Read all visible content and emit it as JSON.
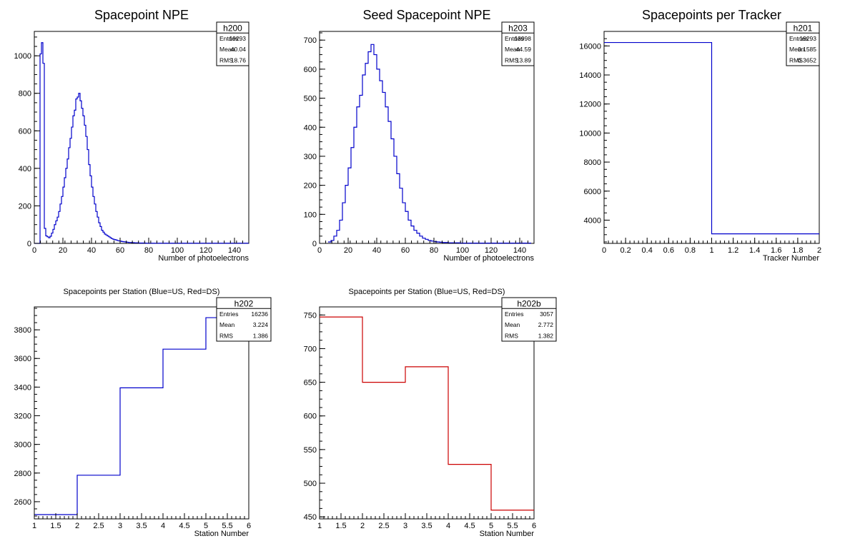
{
  "chart_data": [
    {
      "id": "h200",
      "type": "histogram",
      "title": "Spacepoint NPE",
      "xlabel": "Number of photoelectrons",
      "ylabel": "",
      "xlim": [
        0,
        150
      ],
      "ylim": [
        0,
        1130
      ],
      "xticks": [
        0,
        20,
        40,
        60,
        80,
        100,
        120,
        140
      ],
      "yticks": [
        0,
        200,
        400,
        600,
        800,
        1000
      ],
      "color": "#0000cc",
      "bin_width": 1,
      "bin_start": 0,
      "values": [
        0,
        0,
        0,
        0,
        1010,
        1070,
        960,
        80,
        40,
        35,
        30,
        38,
        55,
        75,
        100,
        120,
        140,
        170,
        210,
        250,
        300,
        350,
        400,
        450,
        510,
        560,
        620,
        680,
        710,
        770,
        780,
        800,
        760,
        720,
        680,
        630,
        570,
        500,
        420,
        360,
        300,
        250,
        210,
        170,
        140,
        110,
        90,
        70,
        60,
        50,
        45,
        40,
        35,
        30,
        25,
        22,
        20,
        18,
        15,
        13,
        12,
        10,
        9,
        8,
        7,
        6,
        5,
        5,
        4,
        4,
        3,
        3,
        3,
        2,
        2,
        2,
        2,
        2,
        1,
        1,
        1,
        1,
        1,
        1,
        1,
        1,
        1,
        1,
        1,
        1,
        1,
        1,
        1,
        1,
        1,
        1,
        1,
        1,
        1,
        1,
        1,
        1,
        1,
        1,
        1,
        1,
        1,
        1,
        1,
        1,
        1,
        1,
        1,
        1,
        1,
        1,
        1,
        1,
        1,
        1,
        1,
        1,
        1,
        1,
        1,
        1,
        1,
        1,
        1,
        1,
        1,
        1,
        1,
        1,
        1,
        1,
        1,
        1,
        1,
        1,
        1,
        1,
        1,
        1,
        1,
        1,
        1,
        1,
        1,
        1
      ],
      "stats": {
        "name": "h200",
        "entries": "19293",
        "mean": "40.04",
        "rms": "18.76"
      }
    },
    {
      "id": "h203",
      "type": "histogram",
      "title": "Seed Spacepoint NPE",
      "xlabel": "Number of photoelectrons",
      "ylabel": "",
      "xlim": [
        0,
        150
      ],
      "ylim": [
        0,
        730
      ],
      "xticks": [
        0,
        20,
        40,
        60,
        80,
        100,
        120,
        140
      ],
      "yticks": [
        0,
        100,
        200,
        300,
        400,
        500,
        600,
        700
      ],
      "color": "#0000cc",
      "bin_width": 2,
      "bin_start": 6,
      "values": [
        5,
        10,
        25,
        45,
        80,
        140,
        200,
        260,
        330,
        400,
        470,
        510,
        580,
        620,
        660,
        685,
        650,
        600,
        560,
        520,
        470,
        420,
        360,
        300,
        240,
        190,
        140,
        110,
        80,
        60,
        45,
        35,
        25,
        18,
        14,
        10,
        8,
        6,
        5,
        4,
        3,
        3,
        2,
        2,
        2,
        2,
        1,
        1,
        1,
        1,
        1,
        1,
        1,
        1,
        1,
        1,
        1,
        1,
        1,
        1,
        1,
        1,
        1,
        1,
        1,
        1,
        1,
        1,
        1,
        1,
        1
      ],
      "stats": {
        "name": "h203",
        "entries": "13998",
        "mean": "44.59",
        "rms": "13.89"
      }
    },
    {
      "id": "h201",
      "type": "histogram",
      "title": "Spacepoints per Tracker",
      "xlabel": "Tracker Number",
      "ylabel": "",
      "xlim": [
        0,
        2
      ],
      "ylim": [
        2400,
        17000
      ],
      "xticks": [
        0,
        0.2,
        0.4,
        0.6,
        0.8,
        1,
        1.2,
        1.4,
        1.6,
        1.8,
        2
      ],
      "yticks": [
        4000,
        6000,
        8000,
        10000,
        12000,
        14000,
        16000
      ],
      "color": "#0000cc",
      "bin_width": 1,
      "bin_start": 0,
      "values": [
        16236,
        3057
      ],
      "stats": {
        "name": "h201",
        "entries": "19293",
        "mean": "0.1585",
        "rms": "0.3652"
      }
    },
    {
      "id": "h202",
      "type": "histogram",
      "title": "Spacepoints per Station (Blue=US, Red=DS)",
      "xlabel": "Station Number",
      "ylabel": "",
      "xlim": [
        1,
        6
      ],
      "ylim": [
        2480,
        3960
      ],
      "xticks": [
        1,
        1.5,
        2,
        2.5,
        3,
        3.5,
        4,
        4.5,
        5,
        5.5,
        6
      ],
      "yticks": [
        2600,
        2800,
        3000,
        3200,
        3400,
        3600,
        3800
      ],
      "color": "#0000cc",
      "bin_width": 1,
      "bin_start": 1,
      "values": [
        2510,
        2785,
        3395,
        3665,
        3885
      ],
      "stats": {
        "name": "h202",
        "entries": "16236",
        "mean": "3.224",
        "rms": "1.386"
      }
    },
    {
      "id": "h202b",
      "type": "histogram",
      "title": "Spacepoints per Station (Blue=US, Red=DS)",
      "xlabel": "Station Number",
      "ylabel": "",
      "xlim": [
        1,
        6
      ],
      "ylim": [
        447,
        762
      ],
      "xticks": [
        1,
        1.5,
        2,
        2.5,
        3,
        3.5,
        4,
        4.5,
        5,
        5.5,
        6
      ],
      "yticks": [
        450,
        500,
        550,
        600,
        650,
        700,
        750
      ],
      "color": "#cc0000",
      "bin_width": 1,
      "bin_start": 1,
      "values": [
        747,
        650,
        673,
        528,
        460
      ],
      "stats": {
        "name": "h202b",
        "entries": "3057",
        "mean": "2.772",
        "rms": "1.382"
      }
    }
  ],
  "stats_labels": {
    "entries": "Entries",
    "mean": "Mean",
    "rms": "RMS"
  }
}
